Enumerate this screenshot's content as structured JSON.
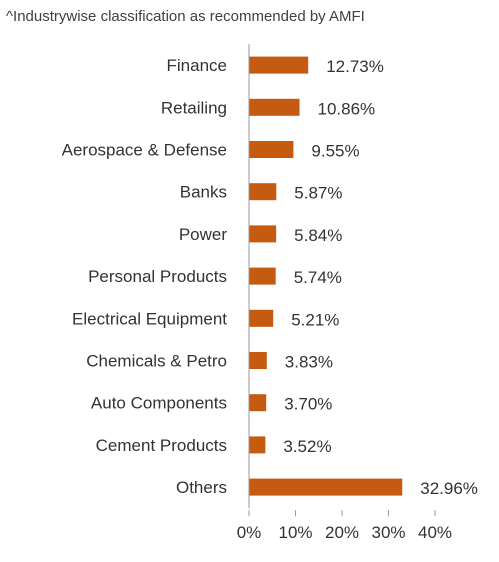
{
  "note": "^Industrywise classification as recommended by AMFI",
  "colors": {
    "bar": "#C55A11",
    "axis": "#9a9a9a"
  },
  "chart_data": {
    "type": "bar",
    "orientation": "horizontal",
    "categories": [
      "Finance",
      "Retailing",
      "Aerospace & Defense",
      "Banks",
      "Power",
      "Personal Products",
      "Electrical Equipment",
      "Chemicals & Petro",
      "Auto Components",
      "Cement Products",
      "Others"
    ],
    "values": [
      12.73,
      10.86,
      9.55,
      5.87,
      5.84,
      5.74,
      5.21,
      3.83,
      3.7,
      3.52,
      32.96
    ],
    "value_labels": [
      "12.73%",
      "10.86%",
      "9.55%",
      "5.87%",
      "5.84%",
      "5.74%",
      "5.21%",
      "3.83%",
      "3.70%",
      "3.52%",
      "32.96%"
    ],
    "xlim": [
      0,
      40
    ],
    "xticks": [
      0,
      10,
      20,
      30,
      40
    ],
    "xtick_labels": [
      "0%",
      "10%",
      "20%",
      "30%",
      "40%"
    ],
    "grid": false,
    "legend": "none"
  }
}
